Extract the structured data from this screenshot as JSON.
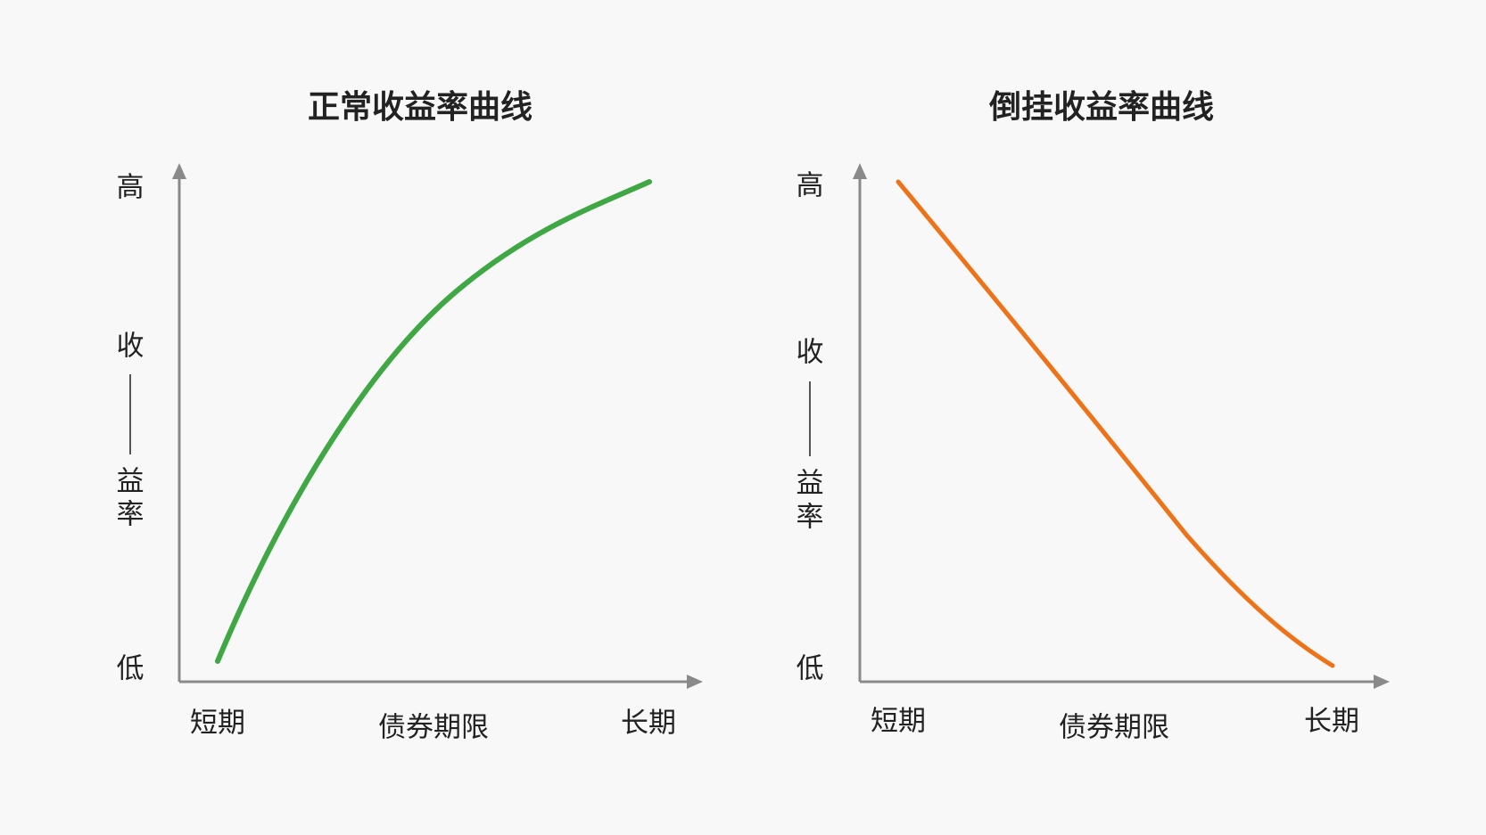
{
  "panels": [
    {
      "title": "正常收益率曲线",
      "y_high": "高",
      "y_label": [
        "收",
        "益",
        "率"
      ],
      "y_low": "低",
      "x_start": "短期",
      "x_label": "债券期限",
      "x_end": "长期"
    },
    {
      "title": "倒挂收益率曲线",
      "y_high": "高",
      "y_label": [
        "收",
        "益",
        "率"
      ],
      "y_low": "低",
      "x_start": "短期",
      "x_label": "债券期限",
      "x_end": "长期"
    }
  ]
}
